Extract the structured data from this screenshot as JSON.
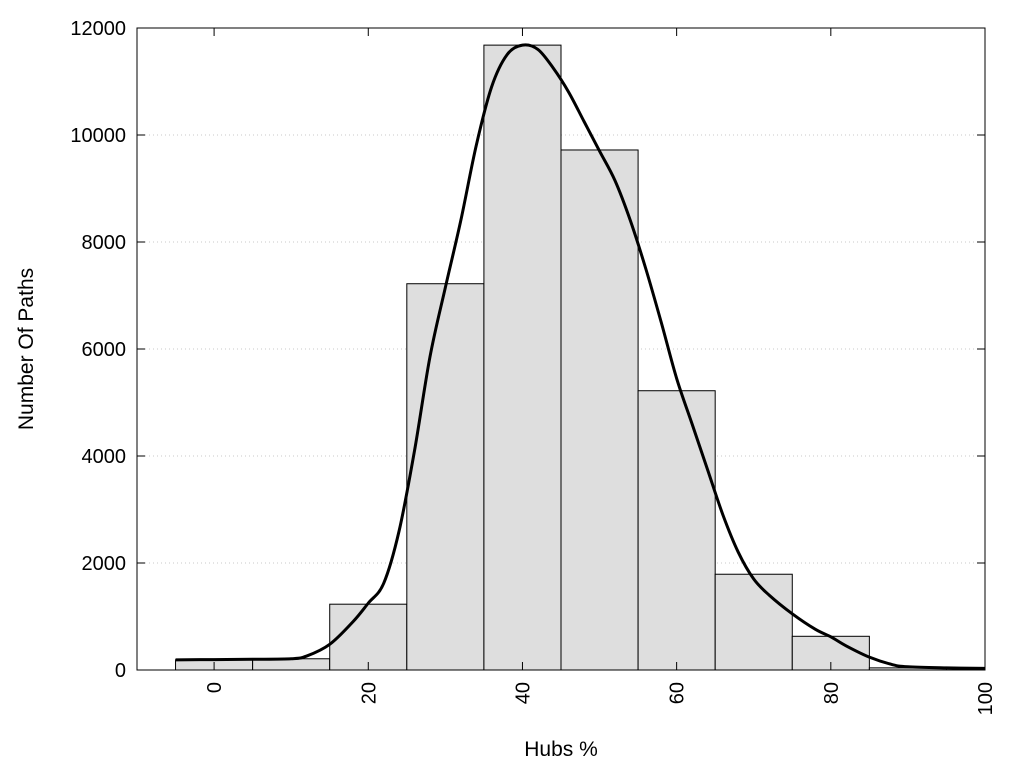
{
  "chart_data": {
    "type": "bar",
    "title": "",
    "xlabel": "Hubs %",
    "ylabel": "Number Of Paths",
    "xlim": [
      -10,
      100
    ],
    "ylim": [
      0,
      12000
    ],
    "bin_width": 10,
    "x_ticks": [
      0,
      20,
      40,
      60,
      80,
      100
    ],
    "y_ticks": [
      0,
      2000,
      4000,
      6000,
      8000,
      10000,
      12000
    ],
    "grid": "horizontal dotted",
    "bars": [
      {
        "x": 0,
        "value": 190
      },
      {
        "x": 10,
        "value": 210
      },
      {
        "x": 20,
        "value": 1230
      },
      {
        "x": 30,
        "value": 7220
      },
      {
        "x": 40,
        "value": 11680
      },
      {
        "x": 50,
        "value": 9720
      },
      {
        "x": 60,
        "value": 5220
      },
      {
        "x": 70,
        "value": 1790
      },
      {
        "x": 80,
        "value": 630
      },
      {
        "x": 90,
        "value": 40
      }
    ],
    "curve": {
      "x": [
        -5,
        0,
        5,
        10,
        12,
        15,
        18,
        20,
        22,
        24,
        26,
        28,
        30,
        32,
        34,
        36,
        38,
        40,
        42,
        44,
        46,
        48,
        50,
        52,
        54,
        56,
        58,
        60,
        62,
        64,
        66,
        68,
        70,
        72,
        75,
        78,
        80,
        82,
        85,
        88,
        90,
        95,
        100
      ],
      "y": [
        190,
        195,
        200,
        210,
        260,
        480,
        900,
        1250,
        1620,
        2600,
        4100,
        5850,
        7150,
        8400,
        9800,
        10900,
        11500,
        11680,
        11600,
        11250,
        10800,
        10250,
        9700,
        9150,
        8400,
        7500,
        6500,
        5450,
        4600,
        3750,
        2900,
        2200,
        1700,
        1400,
        1050,
        760,
        620,
        450,
        240,
        100,
        60,
        40,
        30
      ]
    },
    "colors": {
      "bar_fill": "#dedede",
      "bar_stroke": "#000000",
      "curve": "#000000",
      "grid": "#c8c8c8"
    }
  }
}
